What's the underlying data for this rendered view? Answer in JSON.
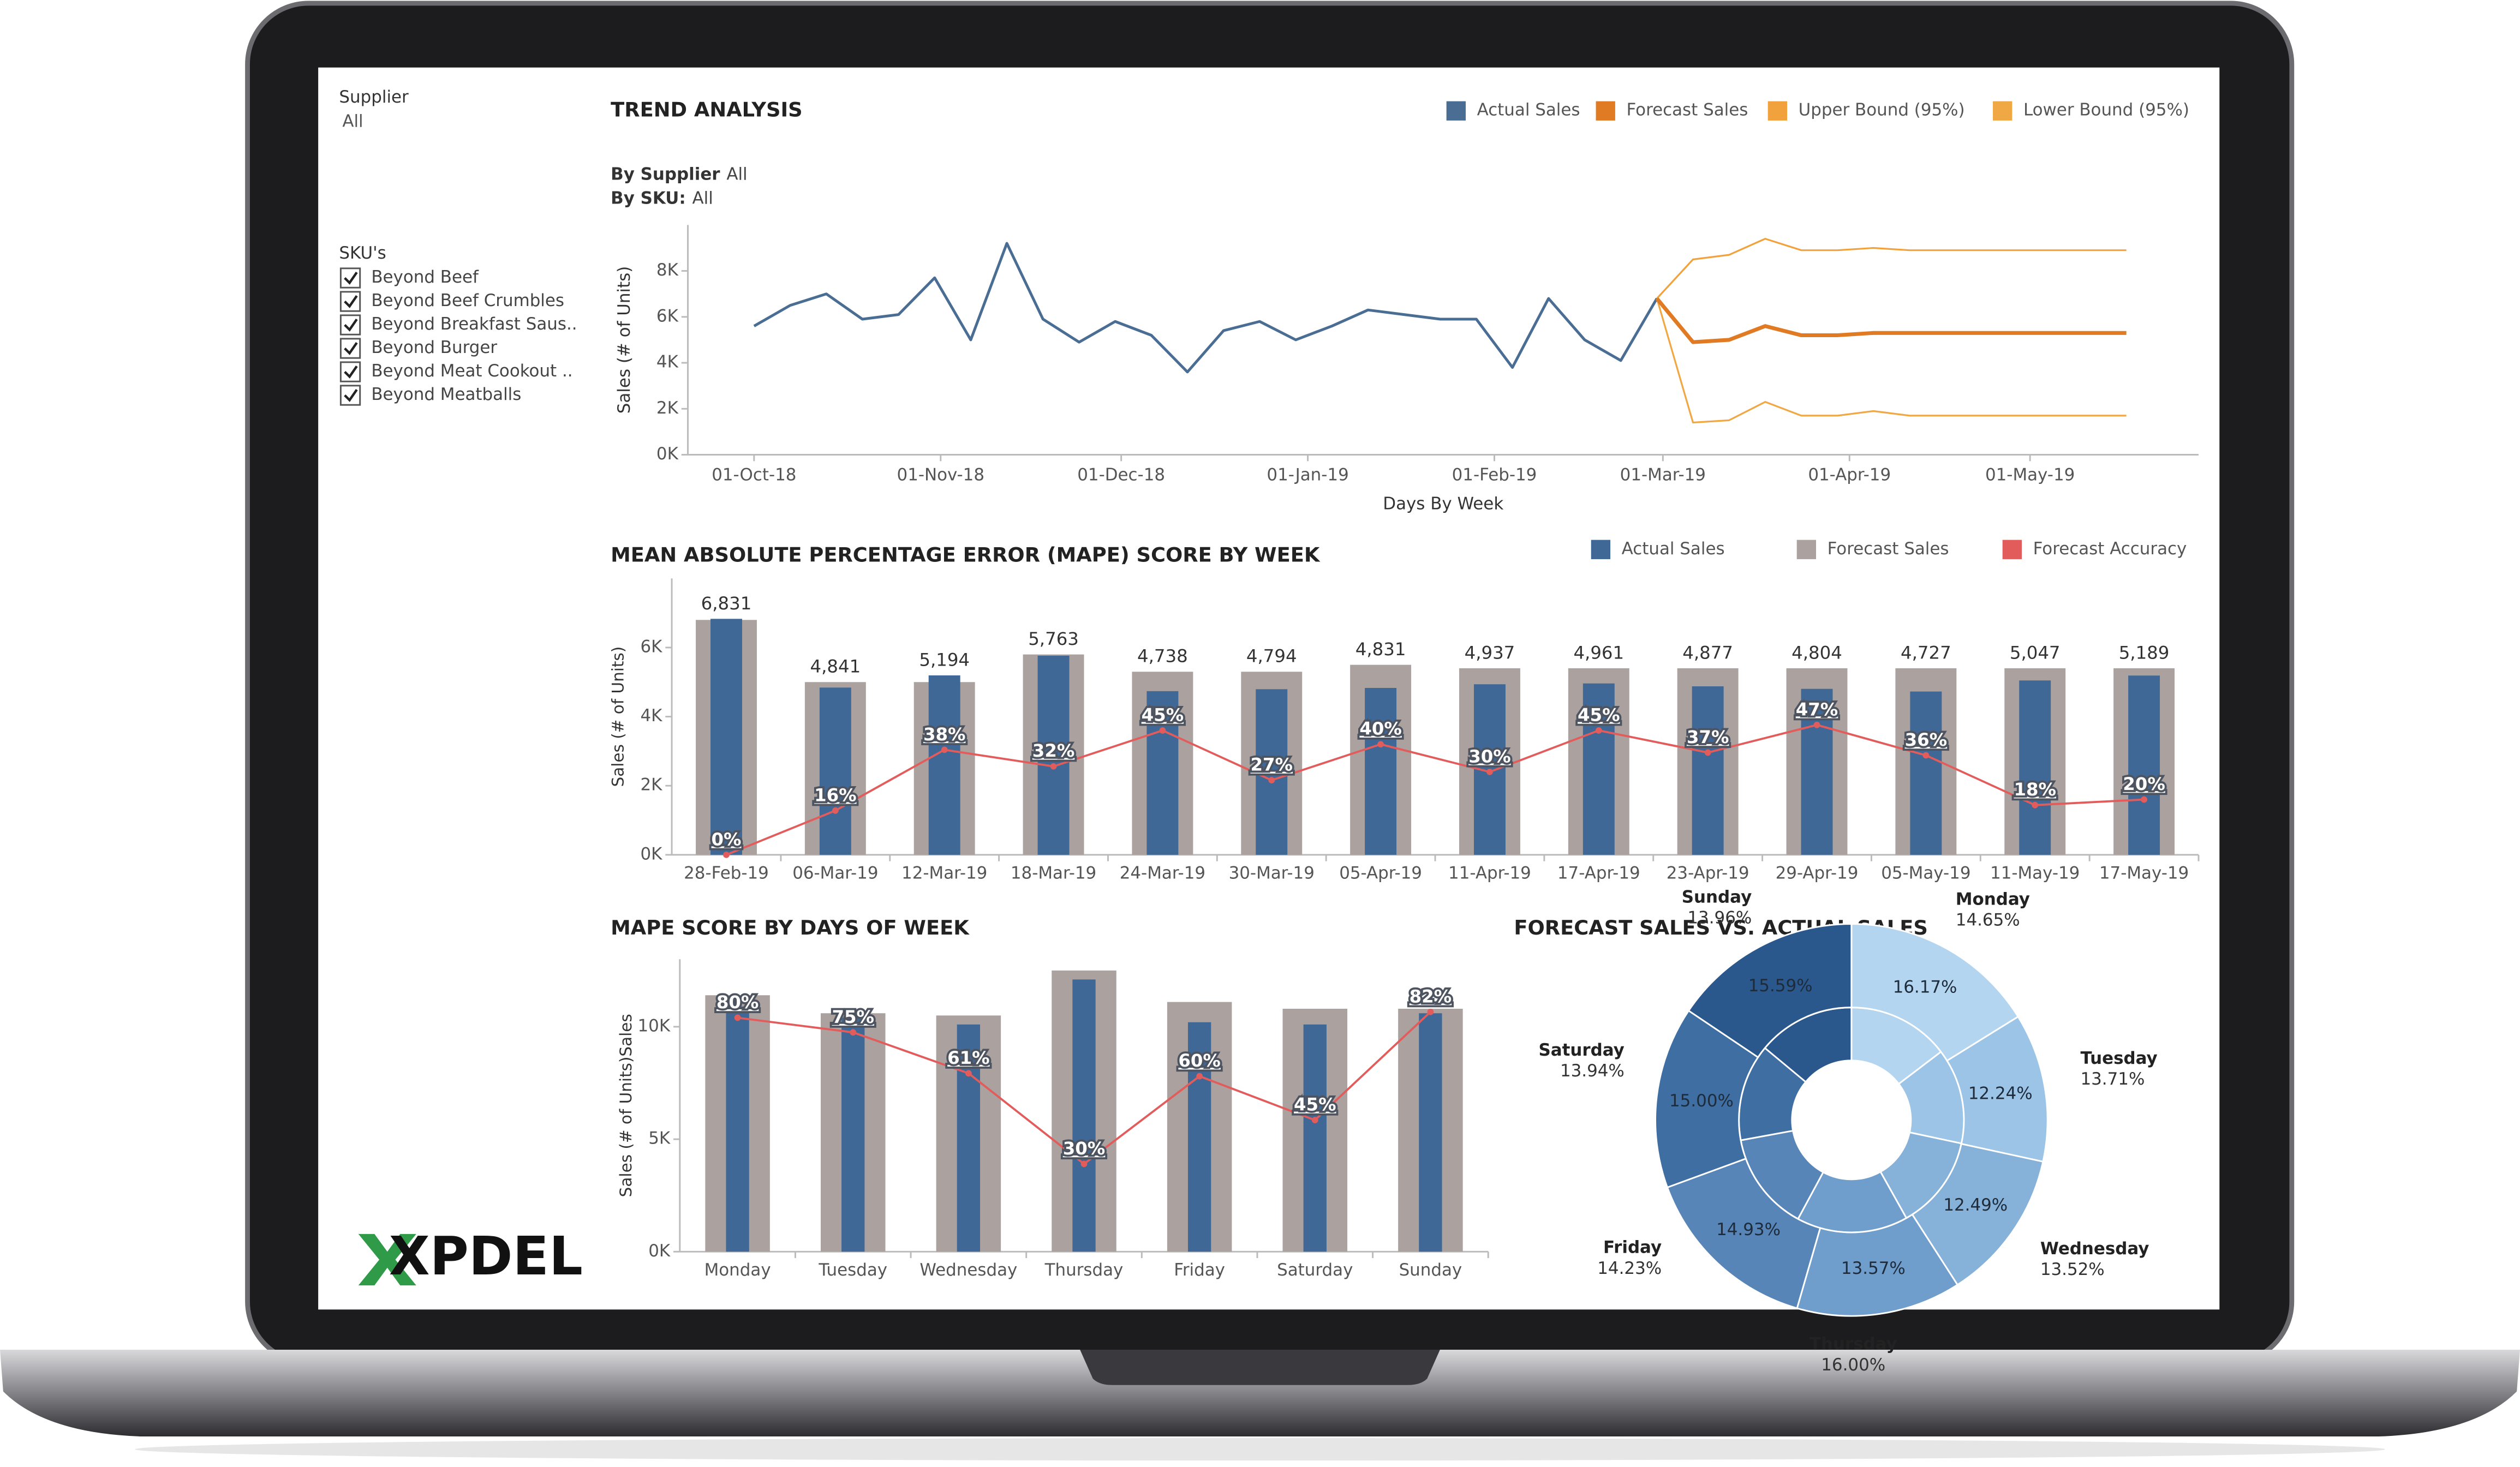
{
  "sidebar": {
    "supplier_label": "Supplier",
    "supplier_value": "All",
    "sku_label": "SKU's",
    "skus": [
      "Beyond Beef",
      "Beyond Beef Crumbles",
      "Beyond Breakfast Saus..",
      "Beyond Burger",
      "Beyond Meat Cookout ..",
      "Beyond Meatballs"
    ]
  },
  "logo": "XPDEL",
  "chart_data": [
    {
      "type": "line",
      "title": "TREND ANALYSIS",
      "filters": [
        {
          "name": "By Supplier",
          "value": "All"
        },
        {
          "name": "By SKU:",
          "value": "All"
        }
      ],
      "xlabel": "Days By Week",
      "ylabel": "Sales (# of Units)",
      "x": [
        "2018-10-01",
        "2018-10-07",
        "2018-10-13",
        "2018-10-19",
        "2018-10-25",
        "2018-10-31",
        "2018-11-06",
        "2018-11-12",
        "2018-11-18",
        "2018-11-24",
        "2018-11-30",
        "2018-12-06",
        "2018-12-12",
        "2018-12-18",
        "2018-12-24",
        "2018-12-30",
        "2019-01-05",
        "2019-01-11",
        "2019-01-17",
        "2019-01-23",
        "2019-01-29",
        "2019-02-04",
        "2019-02-10",
        "2019-02-16",
        "2019-02-22",
        "2019-02-28",
        "2019-03-06",
        "2019-03-12",
        "2019-03-18",
        "2019-03-24",
        "2019-03-30",
        "2019-04-05",
        "2019-04-11",
        "2019-04-17",
        "2019-04-23",
        "2019-04-29",
        "2019-05-05",
        "2019-05-11",
        "2019-05-17"
      ],
      "xlim": [
        "2018-09-20",
        "2019-05-29"
      ],
      "xticks": [
        {
          "value": "2018-10-01",
          "label": "01-Oct-18"
        },
        {
          "value": "2018-11-01",
          "label": "01-Nov-18"
        },
        {
          "value": "2018-12-01",
          "label": "01-Dec-18"
        },
        {
          "value": "2019-01-01",
          "label": "01-Jan-19"
        },
        {
          "value": "2019-02-01",
          "label": "01-Feb-19"
        },
        {
          "value": "2019-03-01",
          "label": "01-Mar-19"
        },
        {
          "value": "2019-04-01",
          "label": "01-Apr-19"
        },
        {
          "value": "2019-05-01",
          "label": "01-May-19"
        }
      ],
      "ylim": [
        0,
        10000
      ],
      "yticks": [
        {
          "value": 0,
          "label": "0K"
        },
        {
          "value": 2000,
          "label": "2K"
        },
        {
          "value": 4000,
          "label": "4K"
        },
        {
          "value": 6000,
          "label": "6K"
        },
        {
          "value": 8000,
          "label": "8K"
        }
      ],
      "series": [
        {
          "name": "Actual Sales",
          "color": "#4a6d94",
          "values": [
            5600,
            6500,
            7000,
            5900,
            6100,
            7700,
            5000,
            9200,
            5900,
            4900,
            5800,
            5200,
            3600,
            5400,
            5800,
            5000,
            5600,
            6300,
            6100,
            5900,
            5900,
            3800,
            6800,
            5000,
            4100,
            6800,
            null,
            null,
            null,
            null,
            null,
            null,
            null,
            null,
            null,
            null,
            null,
            null,
            null
          ]
        },
        {
          "name": "Forecast Sales",
          "color": "#e07b24",
          "values": [
            null,
            null,
            null,
            null,
            null,
            null,
            null,
            null,
            null,
            null,
            null,
            null,
            null,
            null,
            null,
            null,
            null,
            null,
            null,
            null,
            null,
            null,
            null,
            null,
            null,
            6800,
            4900,
            5000,
            5600,
            5200,
            5200,
            5300,
            5300,
            5300,
            5300,
            5300,
            5300,
            5300,
            5300
          ]
        },
        {
          "name": "Upper Bound (95%)",
          "color": "#f2a23c",
          "values": [
            null,
            null,
            null,
            null,
            null,
            null,
            null,
            null,
            null,
            null,
            null,
            null,
            null,
            null,
            null,
            null,
            null,
            null,
            null,
            null,
            null,
            null,
            null,
            null,
            null,
            6800,
            8500,
            8700,
            9400,
            8900,
            8900,
            9000,
            8900,
            8900,
            8900,
            8900,
            8900,
            8900,
            8900
          ]
        },
        {
          "name": "Lower Bound (95%)",
          "color": "#f0a844",
          "values": [
            null,
            null,
            null,
            null,
            null,
            null,
            null,
            null,
            null,
            null,
            null,
            null,
            null,
            null,
            null,
            null,
            null,
            null,
            null,
            null,
            null,
            null,
            null,
            null,
            null,
            6800,
            1400,
            1500,
            2300,
            1700,
            1700,
            1900,
            1700,
            1700,
            1700,
            1700,
            1700,
            1700,
            1700
          ]
        }
      ]
    },
    {
      "type": "bar",
      "title": "MEAN ABSOLUTE PERCENTAGE ERROR (MAPE) SCORE BY WEEK",
      "ylabel": "Sales (# of Units)",
      "categories": [
        "28-Feb-19",
        "06-Mar-19",
        "12-Mar-19",
        "18-Mar-19",
        "24-Mar-19",
        "30-Mar-19",
        "05-Apr-19",
        "11-Apr-19",
        "17-Apr-19",
        "23-Apr-19",
        "29-Apr-19",
        "05-May-19",
        "11-May-19",
        "17-May-19"
      ],
      "ylim": [
        0,
        8000
      ],
      "yticks": [
        {
          "value": 0,
          "label": "0K"
        },
        {
          "value": 2000,
          "label": "2K"
        },
        {
          "value": 4000,
          "label": "4K"
        },
        {
          "value": 6000,
          "label": "6K"
        }
      ],
      "y2lim": [
        0,
        100
      ],
      "series": [
        {
          "name": "Actual Sales",
          "color": "#3f6896",
          "values": [
            6831,
            4841,
            5194,
            5763,
            4738,
            4794,
            4831,
            4937,
            4961,
            4877,
            4804,
            4727,
            5047,
            5189
          ],
          "value_labels": [
            "6,831",
            "4,841",
            "5,194",
            "5,763",
            "4,738",
            "4,794",
            "4,831",
            "4,937",
            "4,961",
            "4,877",
            "4,804",
            "4,727",
            "5,047",
            "5,189"
          ]
        },
        {
          "name": "Forecast Sales",
          "color": "#aba29f",
          "values": [
            6800,
            5000,
            5000,
            5800,
            5300,
            5300,
            5500,
            5400,
            5400,
            5400,
            5400,
            5400,
            5400,
            5400
          ]
        },
        {
          "name": "Forecast Accuracy",
          "color": "#e25c5c",
          "axis": "y2",
          "values": [
            0,
            16,
            38,
            32,
            45,
            27,
            40,
            30,
            45,
            37,
            47,
            36,
            18,
            20
          ],
          "value_labels": [
            "0%",
            "16%",
            "38%",
            "32%",
            "45%",
            "27%",
            "40%",
            "30%",
            "45%",
            "37%",
            "47%",
            "36%",
            "18%",
            "20%"
          ]
        }
      ]
    },
    {
      "type": "bar",
      "title": "MAPE SCORE BY DAYS OF WEEK",
      "ylabel": "Sales (# of Units)Sales",
      "categories": [
        "Monday",
        "Tuesday",
        "Wednesday",
        "Thursday",
        "Friday",
        "Saturday",
        "Sunday"
      ],
      "ylim": [
        0,
        13000
      ],
      "yticks": [
        {
          "value": 0,
          "label": "0K"
        },
        {
          "value": 5000,
          "label": "5K"
        },
        {
          "value": 10000,
          "label": "10K"
        }
      ],
      "y2lim": [
        0,
        100
      ],
      "series": [
        {
          "color": "#3f6896",
          "values": [
            10900,
            10400,
            10100,
            12100,
            10200,
            10100,
            10600
          ]
        },
        {
          "color": "#aba29f",
          "values": [
            11400,
            10600,
            10500,
            12500,
            11100,
            10800,
            10800
          ]
        },
        {
          "color": "#e25c5c",
          "axis": "y2",
          "values": [
            80,
            75,
            61,
            30,
            60,
            45,
            82
          ],
          "value_labels": [
            "80%",
            "75%",
            "61%",
            "30%",
            "60%",
            "45%",
            "82%"
          ]
        }
      ]
    },
    {
      "type": "pie",
      "title": "FORECAST SALES VS. ACTUAL SALES",
      "categories": [
        "Monday",
        "Tuesday",
        "Wednesday",
        "Thursday",
        "Friday",
        "Saturday",
        "Sunday"
      ],
      "colors": [
        "#b3d5f0",
        "#9cc4e6",
        "#86b2da",
        "#6f9dcc",
        "#5785b8",
        "#3f6ea3",
        "#2a588d"
      ],
      "series": [
        {
          "values": [
            14.65,
            13.71,
            13.52,
            16.0,
            14.23,
            13.94,
            13.96
          ],
          "value_labels": [
            "14.65%",
            "13.71%",
            "13.52%",
            "16.00%",
            "14.23%",
            "13.94%",
            "13.96%"
          ]
        },
        {
          "values": [
            16.17,
            12.24,
            12.49,
            13.57,
            14.93,
            15.0,
            15.59
          ],
          "value_labels": [
            "16.17%",
            "12.24%",
            "12.49%",
            "13.57%",
            "14.93%",
            "15.00%",
            "15.59%"
          ]
        }
      ]
    }
  ]
}
